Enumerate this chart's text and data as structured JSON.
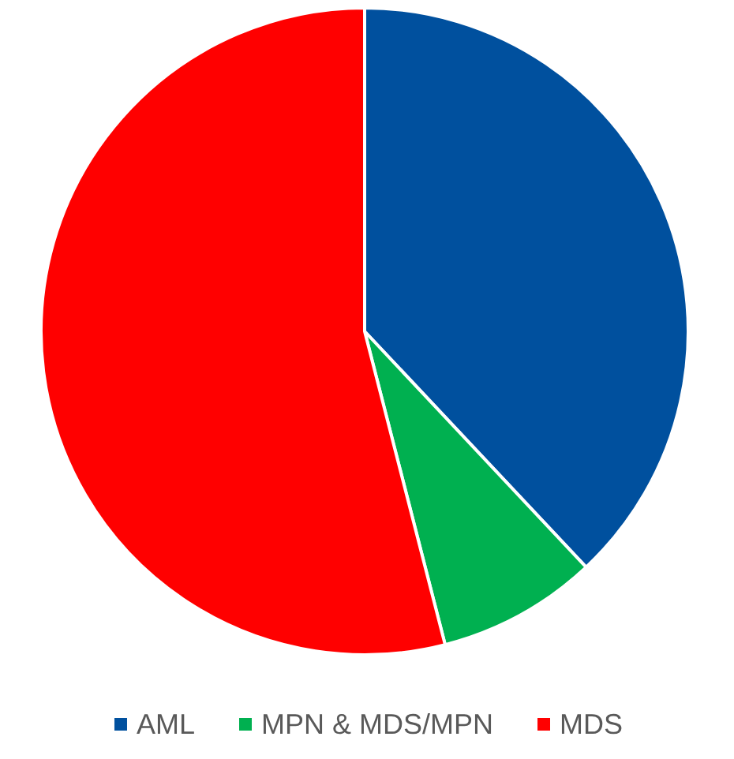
{
  "chart_data": {
    "type": "pie",
    "categories": [
      "AML",
      "MPN & MDS/MPN",
      "MDS"
    ],
    "values": [
      38,
      8,
      54
    ],
    "colors": [
      "#00509e",
      "#00b050",
      "#ff0000"
    ],
    "legend": "bottom"
  }
}
